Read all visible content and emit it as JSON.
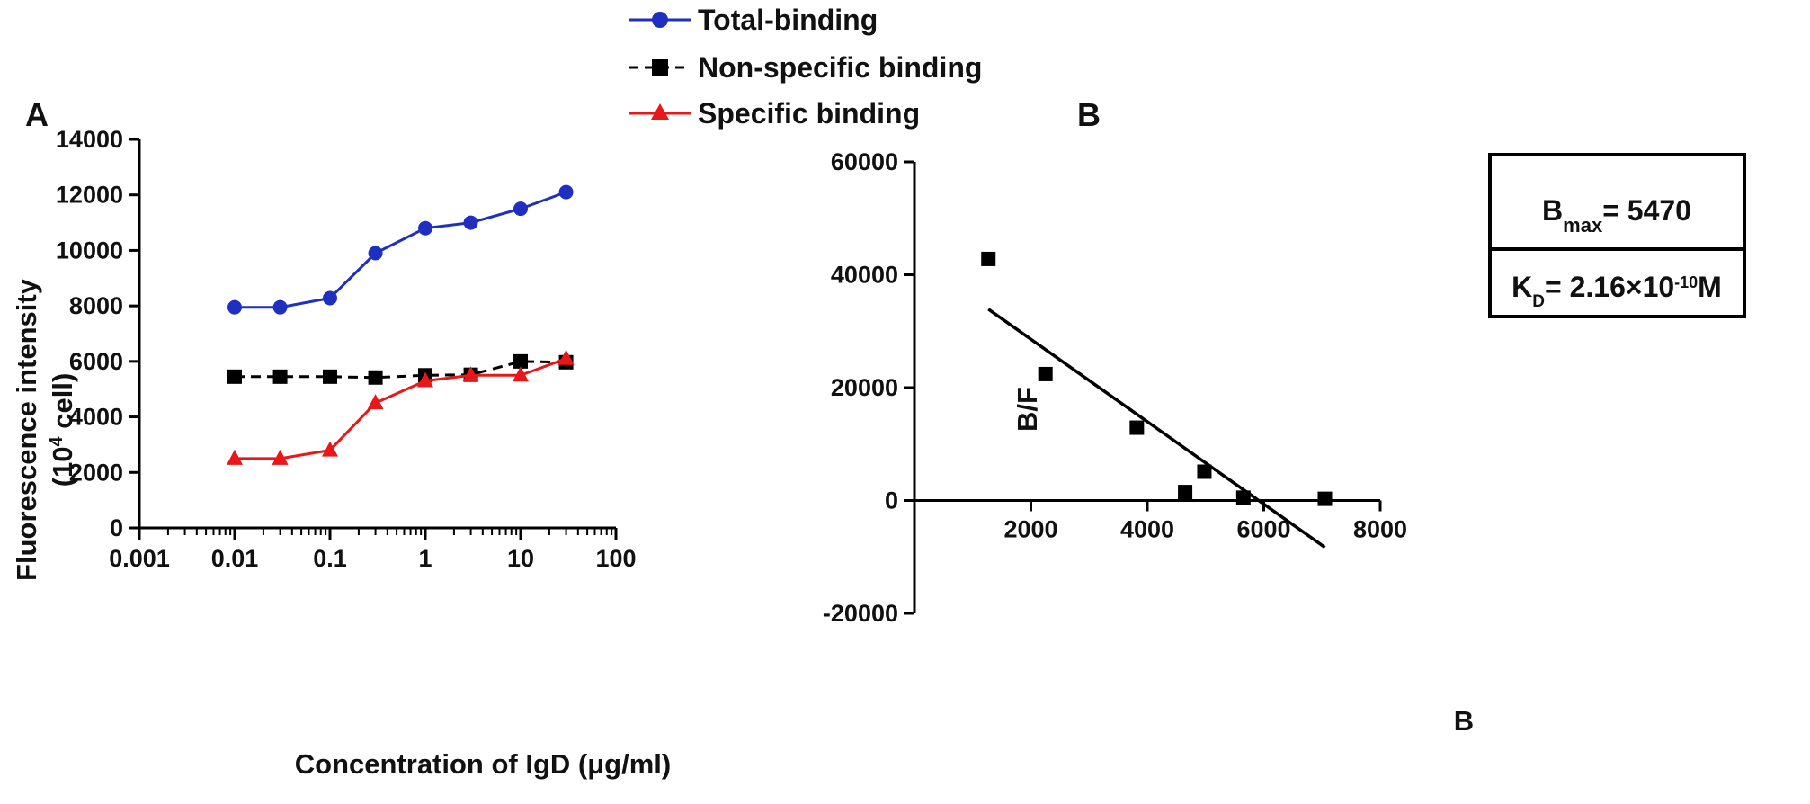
{
  "colors": {
    "total": "#1f2fbf",
    "nonspecific": "#000000",
    "specific": "#e8181a",
    "axis": "#000000"
  },
  "legend": {
    "items": [
      {
        "label": "Total-binding",
        "series": "total",
        "marker": "circle"
      },
      {
        "label": "Non-specific binding",
        "series": "nonspecific",
        "marker": "square"
      },
      {
        "label": "Specific binding",
        "series": "specific",
        "marker": "triangle"
      }
    ]
  },
  "chart_data": [
    {
      "panel_label": "A",
      "type": "line",
      "xscale": "log",
      "xlabel": "Concentration of IgD (μg/ml)",
      "ylabel_line1": "Fluorescence intensity",
      "ylabel_line2_prefix": "(10",
      "ylabel_line2_sup": "4",
      "ylabel_line2_suffix": " cell)",
      "xlim": [
        0.001,
        100
      ],
      "ylim": [
        0,
        14000
      ],
      "xticks": [
        0.001,
        0.01,
        0.1,
        1,
        10,
        100
      ],
      "xtick_labels": [
        "0.001",
        "0.01",
        "0.1",
        "1",
        "10",
        "100"
      ],
      "yticks": [
        0,
        2000,
        4000,
        6000,
        8000,
        10000,
        12000,
        14000
      ],
      "ytick_labels": [
        "0",
        "2000",
        "4000",
        "6000",
        "8000",
        "10000",
        "12000",
        "14000"
      ],
      "x": [
        0.01,
        0.03,
        0.1,
        0.3,
        1,
        3,
        10,
        30
      ],
      "series": [
        {
          "key": "total",
          "name": "Total-binding",
          "values": [
            7950,
            7950,
            8280,
            9900,
            10800,
            11000,
            11500,
            12100
          ]
        },
        {
          "key": "nonspecific",
          "name": "Non-specific binding",
          "values": [
            5450,
            5450,
            5450,
            5420,
            5500,
            5520,
            6000,
            5970
          ]
        },
        {
          "key": "specific",
          "name": "Specific binding",
          "values": [
            2500,
            2500,
            2800,
            4500,
            5300,
            5500,
            5500,
            6100
          ]
        }
      ]
    },
    {
      "panel_label": "B",
      "type": "scatter",
      "xlabel": "B",
      "ylabel": "B/F",
      "xlim": [
        0,
        8000
      ],
      "ylim": [
        -20000,
        60000
      ],
      "xticks": [
        2000,
        4000,
        6000,
        8000
      ],
      "xtick_labels": [
        "2000",
        "4000",
        "6000",
        "8000"
      ],
      "yticks": [
        -20000,
        0,
        20000,
        40000,
        60000
      ],
      "ytick_labels": [
        "-20000",
        "0",
        "20000",
        "40000",
        "60000"
      ],
      "points": [
        {
          "x": 1270,
          "y": 42800
        },
        {
          "x": 2250,
          "y": 22400
        },
        {
          "x": 3820,
          "y": 12900
        },
        {
          "x": 4650,
          "y": 1500
        },
        {
          "x": 4980,
          "y": 5100
        },
        {
          "x": 5650,
          "y": 500
        },
        {
          "x": 7050,
          "y": 300
        }
      ],
      "fit_line": {
        "x": [
          1270,
          7050
        ],
        "y": [
          33900,
          -8300
        ]
      },
      "annotation": {
        "bmax_main": "B",
        "bmax_sub": "max",
        "bmax_rest": "= 5470",
        "kd_main": "K",
        "kd_sub": "D",
        "kd_mid": "= 2.16×10",
        "kd_sup": "-10",
        "kd_end": "M"
      }
    }
  ]
}
